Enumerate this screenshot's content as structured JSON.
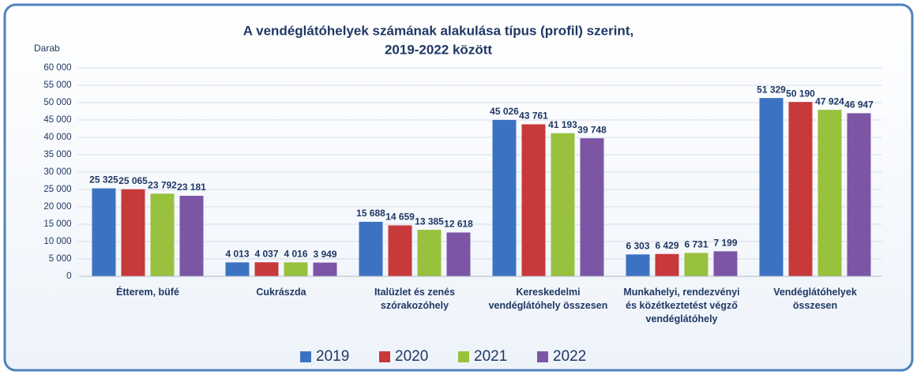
{
  "chart_data": {
    "type": "bar",
    "title": [
      "A vendéglátóhelyek számának alakulása típus (profil) szerint,",
      "2019-2022 között"
    ],
    "y_label": "Darab",
    "categories": [
      "Étterem, büfé",
      "Cukrászda",
      "Italüzlet és zenés szórakozóhely",
      "Kereskedelmi vendéglátóhely összesen",
      "Munkahelyi, rendezvényi és közétkeztetést végző vendéglátóhely",
      "Vendéglátóhelyek összesen"
    ],
    "series": [
      {
        "name": "2019",
        "color": "#3b73c2",
        "values": [
          25325,
          4013,
          15688,
          45026,
          6303,
          51329
        ],
        "value_labels": [
          "25 325",
          "4 013",
          "15 688",
          "45 026",
          "6 303",
          "51 329"
        ]
      },
      {
        "name": "2020",
        "color": "#c8393a",
        "values": [
          25065,
          4037,
          14659,
          43761,
          6429,
          50190
        ],
        "value_labels": [
          "25 065",
          "4 037",
          "14 659",
          "43 761",
          "6 429",
          "50 190"
        ]
      },
      {
        "name": "2021",
        "color": "#98c13d",
        "values": [
          23792,
          4016,
          13385,
          41193,
          6731,
          47924
        ],
        "value_labels": [
          "23 792",
          "4 016",
          "13 385",
          "41 193",
          "6 731",
          "47 924"
        ]
      },
      {
        "name": "2022",
        "color": "#7c56a5",
        "values": [
          23181,
          3949,
          12618,
          39748,
          7199,
          46947
        ],
        "value_labels": [
          "23 181",
          "3 949",
          "12 618",
          "39 748",
          "7 199",
          "46 947"
        ]
      }
    ],
    "ylim": [
      0,
      60000
    ],
    "yticks": [
      0,
      {
        "value": 5000,
        "label": "5 000"
      },
      {
        "value": 10000,
        "label": "10 000"
      },
      {
        "value": 15000,
        "label": "15 000"
      },
      {
        "value": 20000,
        "label": "20 000"
      },
      {
        "value": 25000,
        "label": "25 000"
      },
      {
        "value": 30000,
        "label": "30 000"
      },
      {
        "value": 35000,
        "label": "35 000"
      },
      {
        "value": 40000,
        "label": "40 000"
      },
      {
        "value": 45000,
        "label": "45 000"
      },
      {
        "value": 50000,
        "label": "50 000"
      },
      {
        "value": 55000,
        "label": "55 000"
      },
      {
        "value": 60000,
        "label": "60 000"
      }
    ],
    "grid": true,
    "legend": "bottom"
  }
}
